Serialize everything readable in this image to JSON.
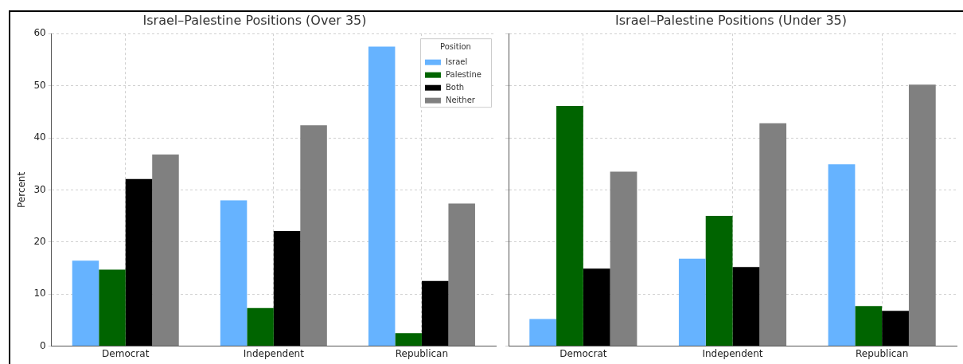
{
  "chart_data": [
    {
      "type": "bar",
      "title": "Israel–Palestine Positions (Over 35)",
      "ylabel": "Percent",
      "legend_title": "Position",
      "categories": [
        "Democrat",
        "Independent",
        "Republican"
      ],
      "ylim": [
        0,
        60
      ],
      "yticks": [
        0,
        10,
        20,
        30,
        40,
        50,
        60
      ],
      "grid": true,
      "legend": "top right",
      "series": [
        {
          "name": "Israel",
          "color": "#66b3ff",
          "values": [
            16.4,
            28.0,
            57.5
          ]
        },
        {
          "name": "Palestine",
          "color": "#006400",
          "values": [
            14.7,
            7.3,
            2.5
          ]
        },
        {
          "name": "Both",
          "color": "#000000",
          "values": [
            32.1,
            22.1,
            12.5
          ]
        },
        {
          "name": "Neither",
          "color": "#808080",
          "values": [
            36.8,
            42.4,
            27.4
          ]
        }
      ]
    },
    {
      "type": "bar",
      "title": "Israel–Palestine Positions (Under 35)",
      "categories": [
        "Democrat",
        "Independent",
        "Republican"
      ],
      "ylim": [
        0,
        60
      ],
      "yticks": [
        0,
        10,
        20,
        30,
        40,
        50,
        60
      ],
      "grid": true,
      "tick_labels": "x",
      "series": [
        {
          "color": "#66b3ff",
          "values": [
            5.2,
            16.8,
            34.9
          ]
        },
        {
          "color": "#006400",
          "values": [
            46.1,
            25.0,
            7.7
          ]
        },
        {
          "color": "#000000",
          "values": [
            14.9,
            15.2,
            6.8
          ]
        },
        {
          "color": "#808080",
          "values": [
            33.5,
            42.8,
            50.2
          ]
        }
      ]
    }
  ]
}
